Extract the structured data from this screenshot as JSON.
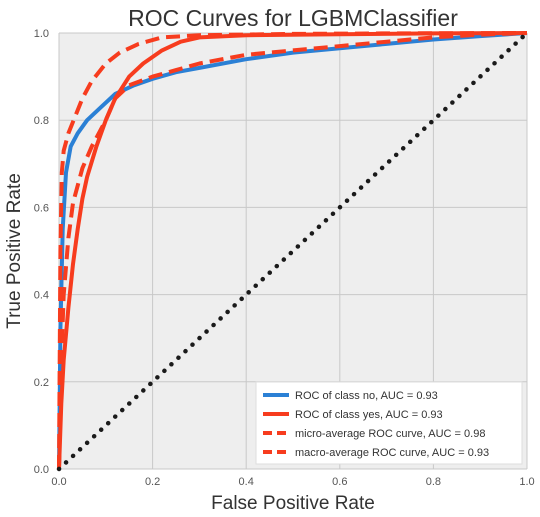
{
  "chart_data": {
    "type": "line",
    "title": "ROC Curves for LGBMClassifier",
    "xlabel": "False Positive Rate",
    "ylabel": "True Positive Rate",
    "xlim": [
      0.0,
      1.0
    ],
    "ylim": [
      0.0,
      1.0
    ],
    "x_ticks": [
      "0.0",
      "0.2",
      "0.4",
      "0.6",
      "0.8",
      "1.0"
    ],
    "y_ticks": [
      "0.0",
      "0.2",
      "0.4",
      "0.6",
      "0.8",
      "1.0"
    ],
    "grid": true,
    "legend_position": "lower-right",
    "series": [
      {
        "name": "ROC of class no, AUC = 0.93",
        "color": "#2b80d5",
        "style": "solid",
        "points": [
          [
            0,
            0
          ],
          [
            0.003,
            0.32
          ],
          [
            0.008,
            0.55
          ],
          [
            0.015,
            0.68
          ],
          [
            0.025,
            0.74
          ],
          [
            0.04,
            0.77
          ],
          [
            0.06,
            0.8
          ],
          [
            0.09,
            0.83
          ],
          [
            0.12,
            0.86
          ],
          [
            0.16,
            0.88
          ],
          [
            0.2,
            0.895
          ],
          [
            0.25,
            0.91
          ],
          [
            0.3,
            0.92
          ],
          [
            0.4,
            0.94
          ],
          [
            0.5,
            0.955
          ],
          [
            0.6,
            0.965
          ],
          [
            0.7,
            0.975
          ],
          [
            0.8,
            0.985
          ],
          [
            0.9,
            0.993
          ],
          [
            1.0,
            1.0
          ]
        ]
      },
      {
        "name": "ROC of class yes, AUC = 0.93",
        "color": "#f73c1e",
        "style": "solid",
        "points": [
          [
            0,
            0
          ],
          [
            0.005,
            0.15
          ],
          [
            0.01,
            0.25
          ],
          [
            0.02,
            0.37
          ],
          [
            0.03,
            0.47
          ],
          [
            0.04,
            0.55
          ],
          [
            0.05,
            0.62
          ],
          [
            0.06,
            0.67
          ],
          [
            0.08,
            0.74
          ],
          [
            0.1,
            0.8
          ],
          [
            0.12,
            0.85
          ],
          [
            0.15,
            0.9
          ],
          [
            0.18,
            0.93
          ],
          [
            0.22,
            0.96
          ],
          [
            0.26,
            0.98
          ],
          [
            0.3,
            0.99
          ],
          [
            0.4,
            0.995
          ],
          [
            0.6,
            0.997
          ],
          [
            0.8,
            0.999
          ],
          [
            1.0,
            1.0
          ]
        ]
      },
      {
        "name": "micro-average ROC curve, AUC = 0.98",
        "color": "#f73c1e",
        "style": "dashed",
        "points": [
          [
            0,
            0
          ],
          [
            0.003,
            0.5
          ],
          [
            0.006,
            0.68
          ],
          [
            0.01,
            0.73
          ],
          [
            0.02,
            0.77
          ],
          [
            0.035,
            0.81
          ],
          [
            0.05,
            0.85
          ],
          [
            0.07,
            0.89
          ],
          [
            0.1,
            0.93
          ],
          [
            0.13,
            0.955
          ],
          [
            0.17,
            0.975
          ],
          [
            0.22,
            0.99
          ],
          [
            0.3,
            0.995
          ],
          [
            0.5,
            0.998
          ],
          [
            0.7,
            0.999
          ],
          [
            1.0,
            1.0
          ]
        ]
      },
      {
        "name": "macro-average ROC curve, AUC = 0.93",
        "color": "#f73c1e",
        "style": "dashed",
        "points": [
          [
            0,
            0
          ],
          [
            0.005,
            0.25
          ],
          [
            0.01,
            0.4
          ],
          [
            0.02,
            0.53
          ],
          [
            0.03,
            0.61
          ],
          [
            0.05,
            0.69
          ],
          [
            0.07,
            0.74
          ],
          [
            0.1,
            0.8
          ],
          [
            0.12,
            0.85
          ],
          [
            0.15,
            0.88
          ],
          [
            0.2,
            0.9
          ],
          [
            0.25,
            0.915
          ],
          [
            0.3,
            0.93
          ],
          [
            0.4,
            0.95
          ],
          [
            0.5,
            0.96
          ],
          [
            0.6,
            0.97
          ],
          [
            0.7,
            0.98
          ],
          [
            0.8,
            0.99
          ],
          [
            0.9,
            0.996
          ],
          [
            1.0,
            1.0
          ]
        ]
      }
    ],
    "diagonal": {
      "color": "#1a1a1a",
      "style": "dotted",
      "points": [
        [
          0,
          0
        ],
        [
          1,
          1
        ]
      ]
    }
  }
}
